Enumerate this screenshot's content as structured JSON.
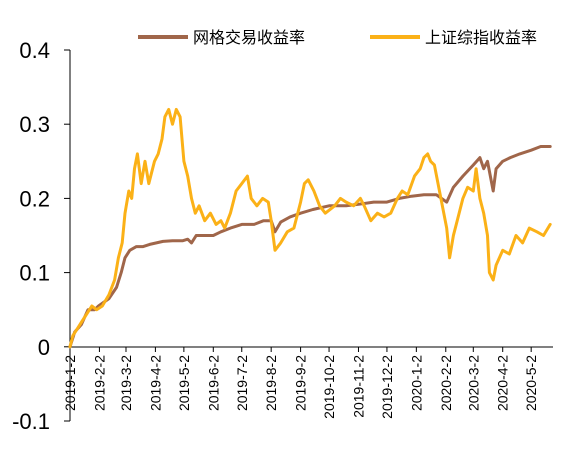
{
  "chart_data": {
    "type": "line",
    "title": "",
    "xlabel": "",
    "ylabel": "",
    "ylim": [
      -0.1,
      0.4
    ],
    "y_ticks": [
      "0.4",
      "0.3",
      "0.2",
      "0.1",
      "0",
      "-0.1"
    ],
    "y_tick_values": [
      0.4,
      0.3,
      0.2,
      0.1,
      0,
      -0.1
    ],
    "x_ticks": [
      "2019-1-2",
      "2019-2-2",
      "2019-3-2",
      "2019-4-2",
      "2019-5-2",
      "2019-6-2",
      "2019-7-2",
      "2019-8-2",
      "2019-9-2",
      "2019-10-2",
      "2019-11-2",
      "2019-12-2",
      "2020-1-2",
      "2020-2-2",
      "2020-3-2",
      "2020-4-2",
      "2020-5-2"
    ],
    "grid": false,
    "legend": "top-right",
    "series": [
      {
        "name": "网格交易收益率",
        "color": "#A0664A",
        "points": [
          [
            "2019-01-02",
            0.0
          ],
          [
            "2019-01-07",
            0.02
          ],
          [
            "2019-01-14",
            0.03
          ],
          [
            "2019-01-21",
            0.05
          ],
          [
            "2019-01-28",
            0.05
          ],
          [
            "2019-02-01",
            0.055
          ],
          [
            "2019-02-12",
            0.065
          ],
          [
            "2019-02-20",
            0.08
          ],
          [
            "2019-02-25",
            0.1
          ],
          [
            "2019-03-01",
            0.12
          ],
          [
            "2019-03-06",
            0.13
          ],
          [
            "2019-03-13",
            0.135
          ],
          [
            "2019-03-20",
            0.135
          ],
          [
            "2019-03-27",
            0.138
          ],
          [
            "2019-04-03",
            0.14
          ],
          [
            "2019-04-10",
            0.142
          ],
          [
            "2019-04-20",
            0.143
          ],
          [
            "2019-05-01",
            0.143
          ],
          [
            "2019-05-06",
            0.145
          ],
          [
            "2019-05-10",
            0.14
          ],
          [
            "2019-05-15",
            0.15
          ],
          [
            "2019-05-25",
            0.15
          ],
          [
            "2019-06-02",
            0.15
          ],
          [
            "2019-06-10",
            0.155
          ],
          [
            "2019-06-20",
            0.16
          ],
          [
            "2019-07-02",
            0.165
          ],
          [
            "2019-07-15",
            0.165
          ],
          [
            "2019-07-25",
            0.17
          ],
          [
            "2019-08-02",
            0.17
          ],
          [
            "2019-08-06",
            0.155
          ],
          [
            "2019-08-12",
            0.168
          ],
          [
            "2019-08-22",
            0.175
          ],
          [
            "2019-09-02",
            0.18
          ],
          [
            "2019-09-15",
            0.185
          ],
          [
            "2019-10-02",
            0.19
          ],
          [
            "2019-10-20",
            0.19
          ],
          [
            "2019-11-02",
            0.192
          ],
          [
            "2019-11-18",
            0.195
          ],
          [
            "2019-12-02",
            0.195
          ],
          [
            "2019-12-15",
            0.2
          ],
          [
            "2019-12-28",
            0.203
          ],
          [
            "2020-01-10",
            0.205
          ],
          [
            "2020-01-23",
            0.205
          ],
          [
            "2020-02-03",
            0.195
          ],
          [
            "2020-02-10",
            0.215
          ],
          [
            "2020-02-20",
            0.23
          ],
          [
            "2020-03-02",
            0.245
          ],
          [
            "2020-03-09",
            0.255
          ],
          [
            "2020-03-13",
            0.24
          ],
          [
            "2020-03-17",
            0.25
          ],
          [
            "2020-03-23",
            0.21
          ],
          [
            "2020-03-26",
            0.24
          ],
          [
            "2020-04-02",
            0.25
          ],
          [
            "2020-04-10",
            0.255
          ],
          [
            "2020-04-20",
            0.26
          ],
          [
            "2020-05-02",
            0.265
          ],
          [
            "2020-05-12",
            0.27
          ],
          [
            "2020-05-22",
            0.27
          ]
        ]
      },
      {
        "name": "上证综指收益率",
        "color": "#FBB117",
        "points": [
          [
            "2019-01-02",
            0.0
          ],
          [
            "2019-01-05",
            0.015
          ],
          [
            "2019-01-10",
            0.025
          ],
          [
            "2019-01-15",
            0.035
          ],
          [
            "2019-01-20",
            0.045
          ],
          [
            "2019-01-25",
            0.055
          ],
          [
            "2019-01-30",
            0.05
          ],
          [
            "2019-02-05",
            0.055
          ],
          [
            "2019-02-12",
            0.07
          ],
          [
            "2019-02-18",
            0.09
          ],
          [
            "2019-02-22",
            0.12
          ],
          [
            "2019-02-26",
            0.14
          ],
          [
            "2019-03-01",
            0.18
          ],
          [
            "2019-03-05",
            0.21
          ],
          [
            "2019-03-08",
            0.2
          ],
          [
            "2019-03-11",
            0.24
          ],
          [
            "2019-03-14",
            0.26
          ],
          [
            "2019-03-18",
            0.22
          ],
          [
            "2019-03-22",
            0.25
          ],
          [
            "2019-03-26",
            0.22
          ],
          [
            "2019-04-01",
            0.25
          ],
          [
            "2019-04-05",
            0.26
          ],
          [
            "2019-04-09",
            0.28
          ],
          [
            "2019-04-12",
            0.31
          ],
          [
            "2019-04-16",
            0.32
          ],
          [
            "2019-04-20",
            0.3
          ],
          [
            "2019-04-24",
            0.32
          ],
          [
            "2019-04-28",
            0.31
          ],
          [
            "2019-05-02",
            0.25
          ],
          [
            "2019-05-06",
            0.23
          ],
          [
            "2019-05-10",
            0.2
          ],
          [
            "2019-05-14",
            0.18
          ],
          [
            "2019-05-18",
            0.19
          ],
          [
            "2019-05-24",
            0.17
          ],
          [
            "2019-05-30",
            0.18
          ],
          [
            "2019-06-05",
            0.165
          ],
          [
            "2019-06-10",
            0.17
          ],
          [
            "2019-06-14",
            0.16
          ],
          [
            "2019-06-20",
            0.18
          ],
          [
            "2019-06-26",
            0.21
          ],
          [
            "2019-07-02",
            0.22
          ],
          [
            "2019-07-08",
            0.23
          ],
          [
            "2019-07-12",
            0.2
          ],
          [
            "2019-07-18",
            0.19
          ],
          [
            "2019-07-24",
            0.2
          ],
          [
            "2019-07-30",
            0.195
          ],
          [
            "2019-08-02",
            0.17
          ],
          [
            "2019-08-06",
            0.13
          ],
          [
            "2019-08-12",
            0.14
          ],
          [
            "2019-08-19",
            0.155
          ],
          [
            "2019-08-26",
            0.16
          ],
          [
            "2019-09-02",
            0.195
          ],
          [
            "2019-09-06",
            0.22
          ],
          [
            "2019-09-10",
            0.225
          ],
          [
            "2019-09-16",
            0.21
          ],
          [
            "2019-09-22",
            0.19
          ],
          [
            "2019-09-28",
            0.18
          ],
          [
            "2019-10-08",
            0.19
          ],
          [
            "2019-10-14",
            0.2
          ],
          [
            "2019-10-20",
            0.195
          ],
          [
            "2019-10-28",
            0.19
          ],
          [
            "2019-11-04",
            0.2
          ],
          [
            "2019-11-08",
            0.19
          ],
          [
            "2019-11-15",
            0.17
          ],
          [
            "2019-11-22",
            0.18
          ],
          [
            "2019-11-29",
            0.175
          ],
          [
            "2019-12-06",
            0.18
          ],
          [
            "2019-12-13",
            0.2
          ],
          [
            "2019-12-18",
            0.21
          ],
          [
            "2019-12-24",
            0.205
          ],
          [
            "2019-12-31",
            0.23
          ],
          [
            "2020-01-06",
            0.24
          ],
          [
            "2020-01-10",
            0.255
          ],
          [
            "2020-01-14",
            0.26
          ],
          [
            "2020-01-17",
            0.25
          ],
          [
            "2020-01-21",
            0.245
          ],
          [
            "2020-02-03",
            0.16
          ],
          [
            "2020-02-06",
            0.12
          ],
          [
            "2020-02-10",
            0.15
          ],
          [
            "2020-02-14",
            0.17
          ],
          [
            "2020-02-20",
            0.2
          ],
          [
            "2020-02-25",
            0.215
          ],
          [
            "2020-03-02",
            0.21
          ],
          [
            "2020-03-05",
            0.24
          ],
          [
            "2020-03-09",
            0.2
          ],
          [
            "2020-03-13",
            0.18
          ],
          [
            "2020-03-17",
            0.15
          ],
          [
            "2020-03-19",
            0.1
          ],
          [
            "2020-03-23",
            0.09
          ],
          [
            "2020-03-26",
            0.11
          ],
          [
            "2020-04-02",
            0.13
          ],
          [
            "2020-04-09",
            0.125
          ],
          [
            "2020-04-16",
            0.15
          ],
          [
            "2020-04-23",
            0.14
          ],
          [
            "2020-04-30",
            0.16
          ],
          [
            "2020-05-08",
            0.155
          ],
          [
            "2020-05-15",
            0.15
          ],
          [
            "2020-05-22",
            0.165
          ]
        ]
      }
    ]
  }
}
